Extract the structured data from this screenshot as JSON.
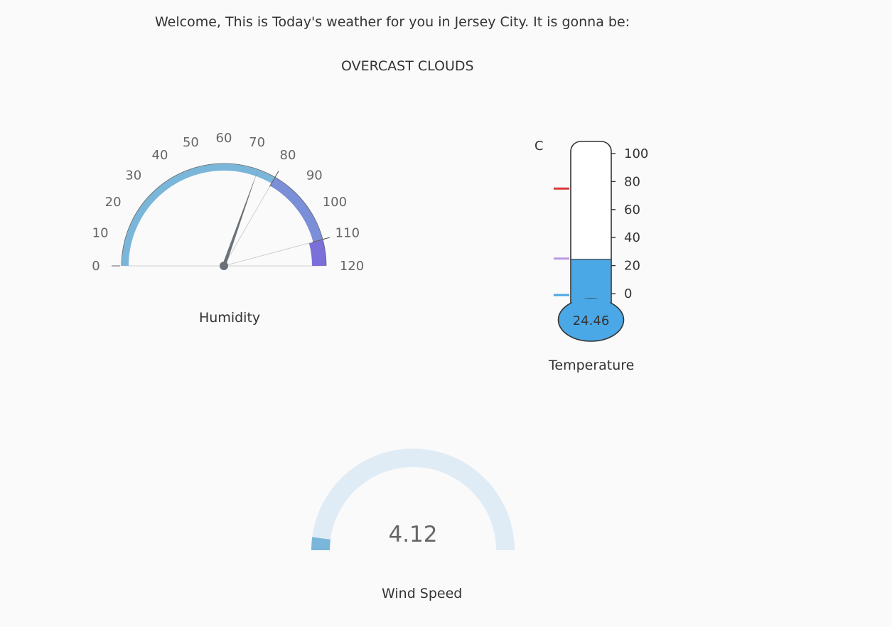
{
  "header": {
    "welcome_text": "Welcome, This is Today's weather for you in Jersey City. It is gonna be:",
    "condition": "OVERCAST CLOUDS"
  },
  "chart_data": [
    {
      "type": "gauge",
      "name": "humidity",
      "title": "Humidity",
      "value": 73,
      "min": 0,
      "max": 120,
      "ticks": [
        "0",
        "10",
        "20",
        "30",
        "40",
        "50",
        "60",
        "70",
        "80",
        "90",
        "100",
        "110",
        "120"
      ],
      "bands": [
        {
          "from": 0,
          "to": 80,
          "color": "#7ab6d9"
        },
        {
          "from": 80,
          "to": 110,
          "color": "#7b8fd9"
        },
        {
          "from": 110,
          "to": 120,
          "color": "#7b6fd9"
        }
      ],
      "needle_color": "#6b7178"
    },
    {
      "type": "thermometer",
      "name": "temperature",
      "title": "Temperature",
      "unit": "C",
      "value": 24.46,
      "value_label": "24.46",
      "min": 0,
      "max": 100,
      "ticks": [
        "0",
        "20",
        "40",
        "60",
        "80",
        "100"
      ],
      "markers": [
        {
          "value": 75,
          "color": "#d93a3a"
        },
        {
          "value": 25,
          "color": "#b89ae6"
        },
        {
          "value": -1,
          "color": "#4aa8e0"
        }
      ],
      "fill_color": "#4aa8e6"
    },
    {
      "type": "gauge",
      "name": "wind-speed",
      "title": "Wind Speed",
      "value": 4.12,
      "value_label": "4.12",
      "min": 0,
      "max": 100,
      "fill_color": "#7ab6d9",
      "track_color": "#e0ecf5"
    }
  ]
}
